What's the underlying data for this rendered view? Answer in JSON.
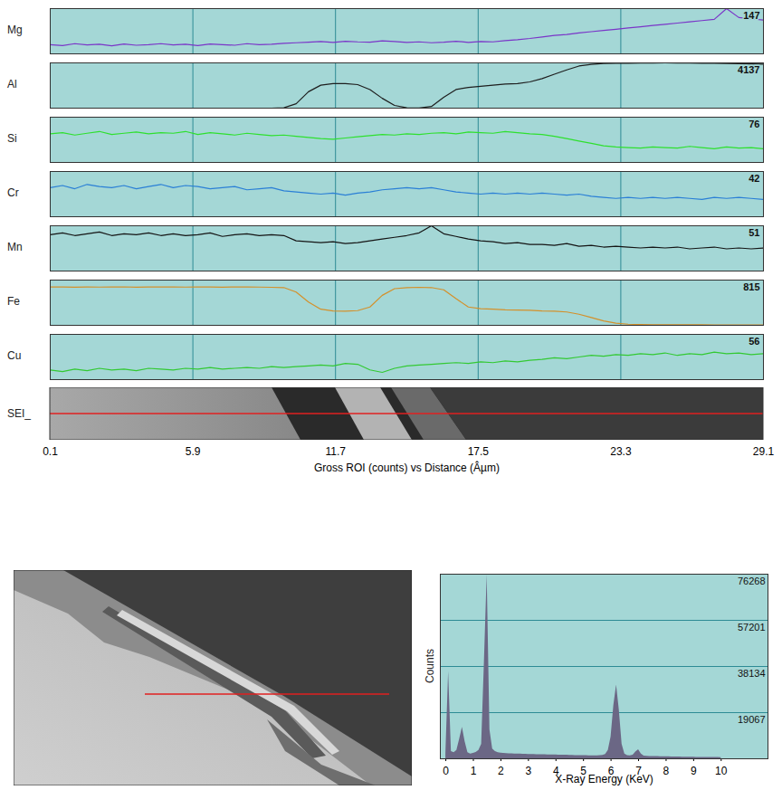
{
  "chart_data": [
    {
      "type": "line",
      "x_label": "Gross ROI (counts) vs Distance (Âµm)",
      "image_label": "SEI_",
      "xlim": [
        0.1,
        29.1
      ],
      "xticks": [
        0.1,
        5.9,
        11.7,
        17.5,
        23.3,
        29.1
      ],
      "grid": true,
      "x": [
        0.1,
        0.6,
        1.1,
        1.6,
        2.1,
        2.6,
        3.1,
        3.6,
        4.1,
        4.6,
        5.1,
        5.6,
        6.1,
        6.6,
        7.1,
        7.6,
        8.1,
        8.6,
        9.1,
        9.6,
        10.1,
        10.6,
        11.1,
        11.6,
        12.1,
        12.6,
        13.1,
        13.6,
        14.1,
        14.6,
        15.1,
        15.6,
        16.1,
        16.6,
        17.1,
        17.6,
        18.1,
        18.6,
        19.1,
        19.6,
        20.1,
        20.6,
        21.1,
        21.6,
        22.1,
        22.6,
        23.1,
        23.6,
        24.1,
        24.6,
        25.1,
        25.6,
        26.1,
        26.6,
        27.1,
        27.6,
        28.1,
        28.6,
        29.1
      ],
      "series": [
        {
          "name": "Mg",
          "color": "#7a35c8",
          "ylim": [
            0,
            147
          ],
          "yticks": [
            147
          ],
          "values": [
            30,
            27,
            33,
            29,
            31,
            26,
            32,
            28,
            30,
            33,
            29,
            31,
            27,
            32,
            30,
            28,
            33,
            30,
            31,
            34,
            36,
            38,
            40,
            37,
            41,
            39,
            38,
            42,
            40,
            37,
            39,
            36,
            38,
            41,
            37,
            40,
            39,
            43,
            46,
            50,
            55,
            60,
            63,
            68,
            72,
            76,
            80,
            84,
            88,
            92,
            96,
            100,
            104,
            108,
            112,
            147,
            118,
            114,
            110
          ]
        },
        {
          "name": "Al",
          "color": "#1e1e1e",
          "ylim": [
            0,
            4137
          ],
          "yticks": [
            4137
          ],
          "values": [
            0,
            0,
            0,
            0,
            0,
            0,
            0,
            0,
            0,
            0,
            0,
            0,
            0,
            0,
            0,
            0,
            0,
            0,
            0,
            30,
            400,
            1500,
            2100,
            2250,
            2250,
            2150,
            1700,
            900,
            250,
            30,
            20,
            150,
            1000,
            1700,
            1900,
            2000,
            2100,
            2200,
            2250,
            2400,
            2700,
            3100,
            3500,
            3850,
            4000,
            4080,
            4100,
            4110,
            4120,
            4130,
            4137,
            4130,
            4120,
            4110,
            4100,
            4080,
            4060,
            4040,
            4020
          ]
        },
        {
          "name": "Si",
          "color": "#2ee02e",
          "ylim": [
            0,
            76
          ],
          "yticks": [
            76
          ],
          "values": [
            48,
            50,
            46,
            49,
            52,
            47,
            49,
            51,
            48,
            50,
            49,
            52,
            47,
            50,
            48,
            46,
            49,
            47,
            45,
            46,
            44,
            42,
            40,
            39,
            41,
            43,
            45,
            47,
            46,
            48,
            47,
            49,
            50,
            48,
            51,
            50,
            49,
            52,
            50,
            48,
            47,
            44,
            40,
            36,
            32,
            28,
            26,
            25,
            24,
            26,
            25,
            24,
            27,
            25,
            23,
            26,
            24,
            25,
            23
          ]
        },
        {
          "name": "Cr",
          "color": "#2a7fd6",
          "ylim": [
            0,
            42
          ],
          "yticks": [
            42
          ],
          "values": [
            27,
            29,
            26,
            30,
            28,
            27,
            29,
            26,
            28,
            30,
            27,
            29,
            28,
            26,
            27,
            28,
            25,
            26,
            27,
            24,
            23,
            22,
            21,
            22,
            20,
            22,
            23,
            25,
            26,
            27,
            26,
            27,
            25,
            23,
            22,
            21,
            22,
            21,
            22,
            21,
            22,
            21,
            20,
            21,
            19,
            18,
            17,
            18,
            17,
            18,
            17,
            18,
            17,
            16,
            18,
            17,
            18,
            17,
            16
          ]
        },
        {
          "name": "Mn",
          "color": "#151515",
          "ylim": [
            0,
            51
          ],
          "yticks": [
            51
          ],
          "values": [
            41,
            43,
            40,
            42,
            44,
            40,
            42,
            41,
            43,
            40,
            42,
            40,
            41,
            43,
            39,
            41,
            42,
            40,
            41,
            40,
            34,
            33,
            32,
            33,
            31,
            32,
            34,
            36,
            38,
            40,
            43,
            51,
            42,
            39,
            36,
            34,
            33,
            31,
            32,
            30,
            30,
            29,
            31,
            28,
            29,
            27,
            28,
            27,
            26,
            27,
            26,
            27,
            25,
            26,
            27,
            25,
            26,
            25,
            26
          ]
        },
        {
          "name": "Fe",
          "color": "#d4902a",
          "ylim": [
            0,
            815
          ],
          "yticks": [
            815
          ],
          "values": [
            690,
            692,
            688,
            691,
            689,
            690,
            693,
            688,
            690,
            691,
            690,
            689,
            692,
            690,
            688,
            691,
            690,
            689,
            685,
            680,
            600,
            420,
            290,
            260,
            255,
            265,
            330,
            540,
            660,
            680,
            685,
            680,
            640,
            480,
            330,
            300,
            290,
            280,
            275,
            270,
            260,
            255,
            240,
            200,
            140,
            80,
            40,
            20,
            15,
            12,
            10,
            10,
            9,
            9,
            8,
            8,
            8,
            7,
            7
          ]
        },
        {
          "name": "Cu",
          "color": "#33c933",
          "ylim": [
            0,
            56
          ],
          "yticks": [
            56
          ],
          "values": [
            12,
            10,
            13,
            11,
            14,
            12,
            13,
            11,
            14,
            13,
            12,
            14,
            13,
            15,
            13,
            14,
            15,
            14,
            16,
            15,
            16,
            17,
            18,
            17,
            20,
            19,
            12,
            9,
            14,
            17,
            18,
            19,
            20,
            21,
            20,
            22,
            21,
            23,
            22,
            24,
            25,
            27,
            26,
            28,
            30,
            29,
            31,
            30,
            32,
            31,
            33,
            30,
            32,
            31,
            34,
            32,
            33,
            31,
            32
          ]
        }
      ]
    },
    {
      "type": "area",
      "x_label": "X-Ray Energy (KeV)",
      "y_label": "Counts",
      "color": "#6b6785",
      "grid": true,
      "xlim": [
        -0.2,
        11.7
      ],
      "xticks": [
        0,
        1,
        2,
        3,
        4,
        5,
        6,
        7,
        8,
        9,
        10
      ],
      "ylim": [
        0,
        76268
      ],
      "yticks": [
        19067,
        38134,
        57201,
        76268
      ],
      "x": [
        0,
        0.1,
        0.2,
        0.3,
        0.4,
        0.5,
        0.6,
        0.7,
        0.8,
        0.9,
        1.0,
        1.1,
        1.2,
        1.3,
        1.4,
        1.5,
        1.6,
        1.7,
        1.8,
        1.9,
        2.0,
        2.1,
        2.2,
        2.3,
        2.4,
        2.5,
        2.6,
        2.7,
        2.8,
        2.9,
        3.0,
        3.1,
        3.2,
        3.3,
        3.4,
        3.5,
        3.6,
        3.7,
        3.8,
        3.9,
        4.0,
        4.1,
        4.2,
        4.3,
        4.4,
        4.5,
        4.6,
        4.7,
        4.8,
        4.9,
        5.0,
        5.1,
        5.2,
        5.3,
        5.4,
        5.5,
        5.6,
        5.7,
        5.8,
        5.9,
        6.0,
        6.1,
        6.2,
        6.3,
        6.4,
        6.5,
        6.6,
        6.7,
        6.8,
        6.9,
        7.0,
        7.1,
        7.2,
        7.3,
        7.4,
        7.5,
        7.6,
        7.7,
        7.8,
        7.9,
        8.0,
        8.1,
        8.2,
        8.3,
        8.4,
        8.5,
        8.6,
        8.7,
        8.8,
        8.9,
        9.0,
        9.1,
        9.2,
        9.3,
        9.4,
        9.5,
        9.6,
        9.7,
        9.8,
        9.9,
        10.0
      ],
      "values": [
        2000,
        36000,
        3000,
        2500,
        3500,
        8000,
        13000,
        7000,
        2500,
        2000,
        2200,
        2600,
        3500,
        6000,
        40000,
        76000,
        12000,
        4000,
        3000,
        2500,
        2300,
        2200,
        2150,
        2100,
        2050,
        2000,
        1950,
        1950,
        1900,
        1850,
        1800,
        1800,
        1750,
        1700,
        1700,
        1650,
        1650,
        1600,
        1600,
        1550,
        1550,
        1500,
        1500,
        1450,
        1450,
        1400,
        1400,
        1350,
        1350,
        1300,
        1300,
        1300,
        1250,
        1250,
        1200,
        1200,
        1300,
        1400,
        1800,
        3500,
        9000,
        22000,
        30500,
        20000,
        6000,
        2000,
        1300,
        1200,
        1500,
        2800,
        3700,
        2000,
        1100,
        1000,
        950,
        950,
        900,
        900,
        850,
        850,
        800,
        800,
        780,
        760,
        740,
        720,
        700,
        680,
        660,
        640,
        620,
        600,
        590,
        580,
        570,
        560,
        550,
        540,
        530,
        520,
        510
      ]
    }
  ]
}
